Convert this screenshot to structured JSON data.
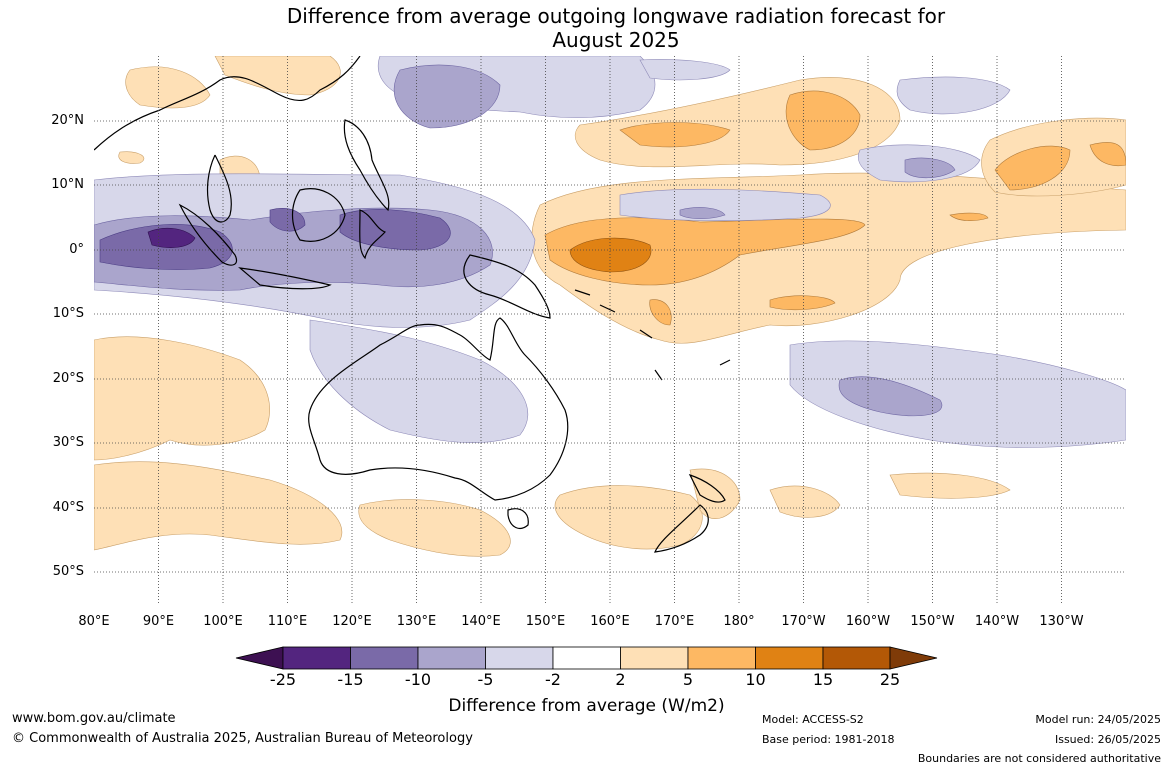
{
  "title_line1": "Difference from average outgoing longwave radiation forecast for",
  "title_line2": "August 2025",
  "latitude_labels": [
    "20°N",
    "10°N",
    "0°",
    "10°S",
    "20°S",
    "30°S",
    "40°S",
    "50°S"
  ],
  "longitude_labels": [
    "80°E",
    "90°E",
    "100°E",
    "110°E",
    "120°E",
    "130°E",
    "140°E",
    "150°E",
    "160°E",
    "170°E",
    "180°",
    "170°W",
    "160°W",
    "150°W",
    "140°W",
    "130°W"
  ],
  "colorbar": {
    "title": "Difference from average (W/m2)",
    "ticks": [
      "-25",
      "-15",
      "-10",
      "-5",
      "-2",
      "2",
      "5",
      "10",
      "15",
      "25"
    ],
    "colors": [
      "#3d1052",
      "#53257f",
      "#7a6aa8",
      "#aaa5cc",
      "#d7d7ea",
      "#ffffff",
      "#fee0b6",
      "#fdb863",
      "#e08214",
      "#b35806",
      "#7f3b08"
    ]
  },
  "footer": {
    "url": "www.bom.gov.au/climate",
    "copyright": "© Commonwealth of Australia 2025, Australian Bureau of Meteorology",
    "model": "Model: ACCESS-S2",
    "base_period": "Base period: 1981-2018",
    "model_run": "Model run: 24/05/2025",
    "issued": "Issued: 26/05/2025",
    "disclaimer": "Boundaries are not considered authoritative"
  }
}
